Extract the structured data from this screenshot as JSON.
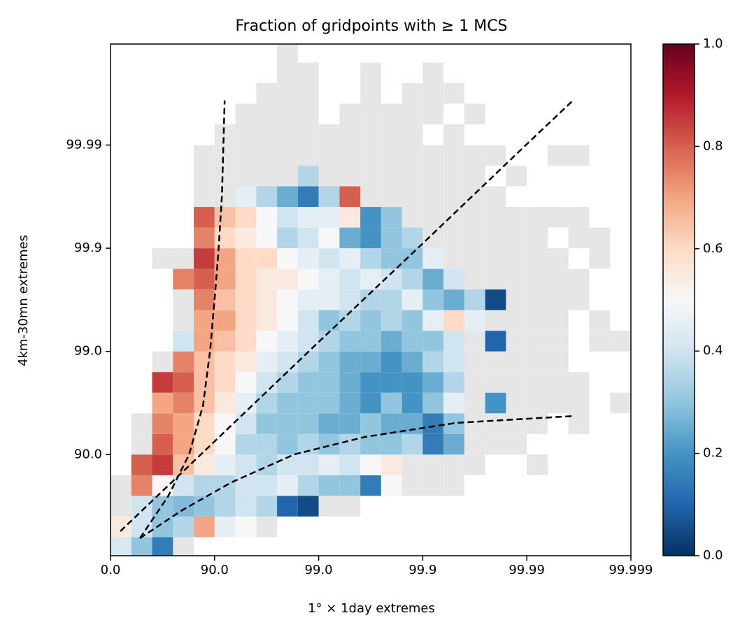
{
  "chart_data": {
    "type": "heatmap",
    "title": "Fraction of gridpoints with ≥ 1 MCS",
    "xlabel": "1° × 1day extremes",
    "ylabel": "4km-30mn extremes",
    "xscale": "log-exceedance",
    "yscale": "log-exceedance",
    "xlim": [
      0,
      99.999
    ],
    "ylim": [
      4.5,
      99.99895
    ],
    "xticks": [
      {
        "value": 0,
        "label": "0.0"
      },
      {
        "value": 90,
        "label": "90.0"
      },
      {
        "value": 99,
        "label": "99.0"
      },
      99.9,
      99.99,
      99.999
    ],
    "yticks": [
      {
        "value": 90,
        "label": "90.0"
      },
      {
        "value": 99,
        "label": "99.0"
      },
      99.9,
      99.99
    ],
    "clim": [
      0,
      1
    ],
    "cticks": [
      {
        "value": 0,
        "label": "0.0"
      },
      0.2,
      0.4,
      0.6,
      0.8,
      {
        "value": 1,
        "label": "1.0"
      }
    ],
    "colormap": [
      "#053061",
      "#2166ac",
      "#4393c3",
      "#92c5de",
      "#d1e5f0",
      "#f7f7f7",
      "#fddbc7",
      "#f4a582",
      "#d6604d",
      "#b2182b",
      "#67001f"
    ],
    "gray_color": "#e6e6e6",
    "x_bins": [
      0,
      36.904,
      60.189,
      74.881,
      84.151,
      90,
      93.6904,
      96.0189,
      97.4881,
      98.4151,
      99,
      99.36904,
      99.60189,
      99.74881,
      99.84151,
      99.9,
      99.936904,
      99.960189,
      99.974881,
      99.984151,
      99.99,
      99.9936904,
      99.9960189,
      99.9974881,
      99.9984151,
      99.999
    ],
    "y_bins": [
      0,
      36.904,
      60.189,
      74.881,
      84.151,
      90,
      93.6904,
      96.0189,
      97.4881,
      98.4151,
      99,
      99.36904,
      99.60189,
      99.74881,
      99.84151,
      99.9,
      99.936904,
      99.960189,
      99.974881,
      99.984151,
      99.99,
      99.9936904,
      99.9960189,
      99.9974881,
      99.9984151,
      99.999
    ],
    "z": [
      [
        0.42,
        0.3,
        0.15,
        null,
        null,
        null,
        null,
        null,
        null,
        null,
        null,
        null,
        null,
        null,
        null,
        null,
        null,
        null,
        null,
        null,
        null,
        null,
        null,
        null,
        null
      ],
      [
        0.55,
        0.4,
        0.3,
        0.35,
        0.7,
        0.45,
        0.5,
        null,
        null,
        null,
        null,
        null,
        null,
        null,
        null,
        null,
        null,
        null,
        null,
        null,
        null,
        null,
        null,
        null,
        null
      ],
      [
        null,
        0.4,
        0.3,
        0.28,
        0.3,
        0.35,
        0.4,
        0.35,
        0.1,
        0.05,
        null,
        null,
        null,
        null,
        null,
        null,
        null,
        null,
        null,
        null,
        null,
        null,
        null,
        null,
        null
      ],
      [
        null,
        0.75,
        0.5,
        0.4,
        0.35,
        0.35,
        0.4,
        0.4,
        0.45,
        0.35,
        0.3,
        0.3,
        0.15,
        0.5,
        null,
        null,
        null,
        null,
        null,
        null,
        null,
        null,
        null,
        null,
        null
      ],
      [
        null,
        0.8,
        0.85,
        0.65,
        0.55,
        0.45,
        0.4,
        0.35,
        0.4,
        0.4,
        0.45,
        0.4,
        0.5,
        0.55,
        null,
        null,
        null,
        null,
        null,
        null,
        null,
        null,
        null,
        null,
        null
      ],
      [
        null,
        null,
        0.8,
        0.7,
        0.6,
        0.5,
        0.35,
        0.35,
        0.3,
        0.35,
        0.3,
        0.35,
        0.3,
        0.3,
        0.35,
        0.15,
        0.25,
        null,
        null,
        null,
        null,
        null,
        null,
        null,
        null
      ],
      [
        null,
        null,
        0.75,
        0.7,
        0.6,
        0.5,
        0.4,
        0.3,
        0.3,
        0.3,
        0.25,
        0.25,
        0.3,
        0.25,
        0.25,
        0.15,
        0.3,
        null,
        null,
        null,
        null,
        null,
        null,
        null,
        null
      ],
      [
        null,
        null,
        0.7,
        0.75,
        0.65,
        0.55,
        0.45,
        0.35,
        0.3,
        0.3,
        0.3,
        0.25,
        0.2,
        0.3,
        0.2,
        0.3,
        0.45,
        null,
        0.2,
        null,
        null,
        null,
        null,
        null,
        null
      ],
      [
        null,
        null,
        0.85,
        0.8,
        0.65,
        0.6,
        0.5,
        0.4,
        0.35,
        0.3,
        0.3,
        0.25,
        0.2,
        0.2,
        0.2,
        0.25,
        0.35,
        null,
        null,
        null,
        null,
        null,
        null,
        null,
        null
      ],
      [
        null,
        null,
        null,
        0.75,
        0.65,
        0.6,
        0.55,
        0.45,
        0.4,
        0.35,
        0.3,
        0.25,
        0.25,
        0.2,
        0.25,
        0.35,
        0.4,
        null,
        null,
        null,
        null,
        null,
        null,
        null,
        null
      ],
      [
        null,
        null,
        null,
        0.4,
        0.7,
        0.65,
        0.6,
        0.5,
        0.45,
        0.4,
        0.35,
        0.3,
        0.3,
        0.25,
        0.3,
        0.3,
        0.4,
        null,
        0.1,
        null,
        null,
        null,
        null,
        null,
        null
      ],
      [
        null,
        null,
        null,
        null,
        0.7,
        0.7,
        0.6,
        0.55,
        0.5,
        0.4,
        0.3,
        0.35,
        0.3,
        0.35,
        0.3,
        0.45,
        0.6,
        0.45,
        null,
        null,
        null,
        null,
        null,
        null,
        null
      ],
      [
        null,
        null,
        null,
        null,
        0.75,
        0.65,
        0.6,
        0.55,
        0.5,
        0.45,
        0.45,
        0.4,
        0.35,
        0.35,
        0.45,
        0.3,
        0.25,
        0.35,
        0.05,
        null,
        null,
        null,
        null,
        null,
        null
      ],
      [
        null,
        null,
        null,
        0.75,
        0.8,
        0.7,
        0.6,
        0.55,
        0.55,
        0.5,
        0.45,
        0.4,
        0.45,
        0.4,
        0.35,
        0.25,
        0.4,
        null,
        null,
        null,
        null,
        null,
        null,
        null,
        null
      ],
      [
        null,
        null,
        null,
        null,
        0.85,
        0.7,
        0.6,
        0.6,
        0.5,
        0.45,
        0.4,
        0.45,
        0.35,
        0.3,
        0.3,
        0.45,
        null,
        null,
        null,
        null,
        null,
        null,
        null,
        null,
        null
      ],
      [
        null,
        null,
        null,
        null,
        0.75,
        0.6,
        0.55,
        0.5,
        0.35,
        0.4,
        0.5,
        0.25,
        0.2,
        0.3,
        0.35,
        null,
        null,
        null,
        null,
        null,
        null,
        null,
        null,
        null,
        null
      ],
      [
        null,
        null,
        null,
        null,
        0.8,
        0.65,
        0.6,
        0.5,
        0.4,
        0.45,
        0.45,
        0.55,
        0.2,
        0.3,
        null,
        null,
        null,
        null,
        null,
        null,
        null,
        null,
        null,
        null,
        null
      ],
      [
        null,
        null,
        null,
        null,
        null,
        null,
        0.45,
        0.35,
        0.25,
        0.15,
        0.35,
        0.8,
        null,
        null,
        null,
        null,
        null,
        null,
        null,
        null,
        null,
        null,
        null,
        null,
        null
      ],
      [
        null,
        null,
        null,
        null,
        null,
        null,
        null,
        null,
        null,
        0.35,
        null,
        null,
        null,
        null,
        null,
        null,
        null,
        null,
        null,
        null,
        null,
        null,
        null,
        null,
        null
      ],
      [
        null,
        null,
        null,
        null,
        null,
        null,
        null,
        null,
        null,
        null,
        null,
        null,
        null,
        null,
        null,
        null,
        null,
        null,
        null,
        null,
        null,
        null,
        null,
        null,
        null
      ],
      [
        null,
        null,
        null,
        null,
        null,
        null,
        null,
        null,
        null,
        null,
        null,
        null,
        null,
        null,
        null,
        null,
        null,
        null,
        null,
        null,
        null,
        null,
        null,
        null,
        null
      ],
      [
        null,
        null,
        null,
        null,
        null,
        null,
        null,
        null,
        null,
        null,
        null,
        null,
        null,
        null,
        null,
        null,
        null,
        null,
        null,
        null,
        null,
        null,
        null,
        null,
        null
      ],
      [
        null,
        null,
        null,
        null,
        null,
        null,
        null,
        null,
        null,
        null,
        null,
        null,
        null,
        null,
        null,
        null,
        null,
        null,
        null,
        null,
        null,
        null,
        null,
        null,
        null
      ],
      [
        null,
        null,
        null,
        null,
        null,
        null,
        null,
        null,
        null,
        null,
        null,
        null,
        null,
        null,
        null,
        null,
        null,
        null,
        null,
        null,
        null,
        null,
        null,
        null,
        null
      ],
      [
        null,
        null,
        null,
        null,
        null,
        null,
        null,
        null,
        null,
        null,
        null,
        null,
        null,
        null,
        null,
        null,
        null,
        null,
        null,
        null,
        null,
        null,
        null,
        null,
        null
      ]
    ],
    "gray_cells": [
      [
        3
      ],
      [
        7
      ],
      [
        0,
        10,
        11
      ],
      [
        0,
        14,
        15,
        16
      ],
      [
        14,
        15,
        16,
        17,
        20
      ],
      [
        1,
        17,
        18,
        19
      ],
      [
        1,
        17,
        18,
        19,
        20,
        22
      ],
      [
        17,
        19,
        20,
        21,
        22,
        24
      ],
      [
        17,
        18,
        19,
        20,
        21,
        22
      ],
      [
        2,
        17,
        18,
        19,
        20,
        21
      ],
      [
        17,
        19,
        20,
        21,
        23,
        24
      ],
      [
        3,
        18,
        19,
        20,
        21,
        23
      ],
      [
        3,
        19,
        20,
        21,
        22
      ],
      [
        17,
        18,
        19,
        20,
        21,
        22
      ],
      [
        2,
        3,
        16,
        17,
        18,
        19,
        20,
        21,
        23
      ],
      [
        15,
        16,
        17,
        18,
        19,
        20,
        22,
        23
      ],
      [
        14,
        15,
        16,
        17,
        18,
        19,
        20,
        21,
        22
      ],
      [
        4,
        5,
        12,
        13,
        14,
        15,
        16,
        17,
        18
      ],
      [
        4,
        5,
        6,
        7,
        8,
        10,
        11,
        12,
        13,
        14,
        15,
        16,
        17,
        19
      ],
      [
        4,
        5,
        6,
        7,
        8,
        9,
        10,
        11,
        12,
        13,
        14,
        15,
        16,
        17,
        18,
        21,
        22
      ],
      [
        5,
        6,
        7,
        8,
        9,
        10,
        11,
        12,
        13,
        14,
        16
      ],
      [
        6,
        7,
        8,
        9,
        11,
        12,
        13,
        14,
        15,
        17
      ],
      [
        7,
        8,
        9,
        12,
        14,
        15,
        16
      ],
      [
        8,
        9,
        12,
        15
      ],
      [
        8
      ]
    ],
    "lines": [
      {
        "color": "#000000",
        "x": [
          47.9,
          72,
          82.4,
          87.1,
          89.0,
          90.1,
          90.8,
          91.5,
          92.0
        ],
        "y": [
          35.4,
          74.6,
          90,
          96.66,
          99.04,
          99.72,
          99.89,
          99.969,
          99.9963
        ]
      },
      {
        "color": "#000000",
        "x": [
          19.5,
          90,
          99,
          99.9,
          99.99,
          99.9964
        ],
        "y": [
          44.7,
          92.55,
          99.19,
          99.91,
          99.9902,
          99.9963
        ]
      },
      {
        "color": "#000000",
        "x": [
          47.9,
          79.4,
          93.1,
          98.29,
          99.64,
          99.952,
          99.9964
        ],
        "y": [
          35.4,
          65.3,
          81.4,
          90.05,
          93.25,
          95.07,
          95.77
        ]
      }
    ]
  }
}
